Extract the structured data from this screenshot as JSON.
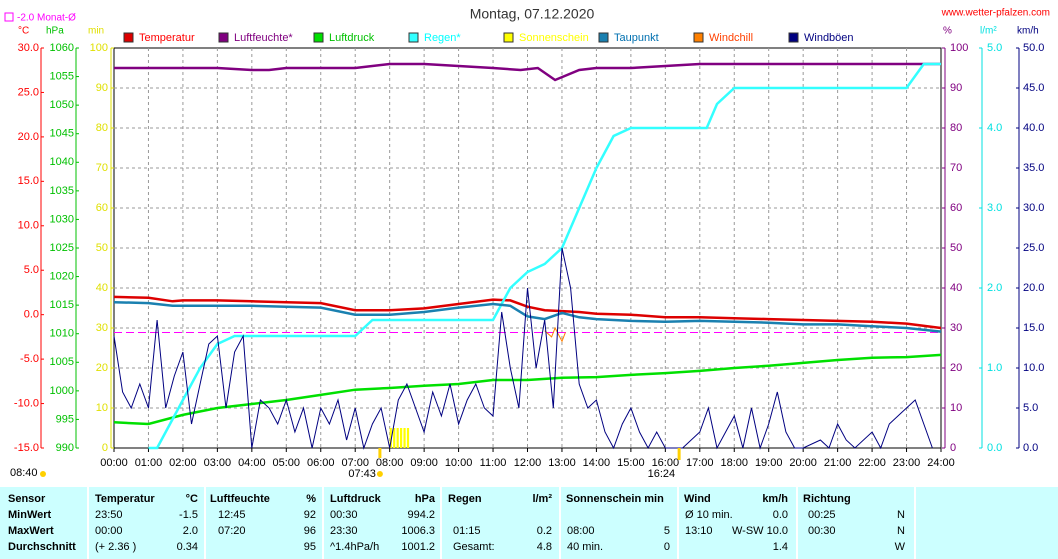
{
  "chart_data": {
    "type": "line",
    "title": "Montag, 07.12.2020",
    "site": "www.wetter-pfalzen.com",
    "monthly_avg": {
      "value": -2.0,
      "label": "-2.0 Monat-Ø",
      "color": "#ff00ff"
    },
    "updated": "08:40",
    "sunrise": "07:43",
    "sunset": "16:24",
    "xlim": [
      0,
      24
    ],
    "xticks": [
      {
        "value": 0,
        "label": "00:00"
      },
      {
        "value": 1,
        "label": "01:00"
      },
      {
        "value": 2,
        "label": "02:00"
      },
      {
        "value": 3,
        "label": "03:00"
      },
      {
        "value": 4,
        "label": "04:00"
      },
      {
        "value": 5,
        "label": "05:00"
      },
      {
        "value": 6,
        "label": "06:00"
      },
      {
        "value": 7,
        "label": "07:00"
      },
      {
        "value": 8,
        "label": "08:00"
      },
      {
        "value": 9,
        "label": "09:00"
      },
      {
        "value": 10,
        "label": "10:00"
      },
      {
        "value": 11,
        "label": "11:00"
      },
      {
        "value": 12,
        "label": "12:00"
      },
      {
        "value": 13,
        "label": "13:00"
      },
      {
        "value": 14,
        "label": "14:00"
      },
      {
        "value": 15,
        "label": "15:00"
      },
      {
        "value": 16,
        "label": "16:00"
      },
      {
        "value": 17,
        "label": "17:00"
      },
      {
        "value": 18,
        "label": "18:00"
      },
      {
        "value": 19,
        "label": "19:00"
      },
      {
        "value": 20,
        "label": "20:00"
      },
      {
        "value": 21,
        "label": "21:00"
      },
      {
        "value": 22,
        "label": "22:00"
      },
      {
        "value": 23,
        "label": "23:00"
      },
      {
        "value": 24,
        "label": "24:00"
      }
    ],
    "grid": true,
    "axes": [
      {
        "unit": "°C",
        "side": "left",
        "color": "#ff0000",
        "lim": [
          -15,
          30
        ],
        "ticks": [
          {
            "value": -15,
            "label": "-15.0"
          },
          {
            "value": -10,
            "label": "-10.0"
          },
          {
            "value": -5,
            "label": "-5.0"
          },
          {
            "value": 0,
            "label": "0.0"
          },
          {
            "value": 5,
            "label": "5.0"
          },
          {
            "value": 10,
            "label": "10.0"
          },
          {
            "value": 15,
            "label": "15.0"
          },
          {
            "value": 20,
            "label": "20.0"
          },
          {
            "value": 25,
            "label": "25.0"
          },
          {
            "value": 30,
            "label": "30.0"
          }
        ]
      },
      {
        "unit": "hPa",
        "side": "left",
        "color": "#00c000",
        "lim": [
          990,
          1060
        ],
        "ticks": [
          990,
          995,
          1000,
          1005,
          1010,
          1015,
          1020,
          1025,
          1030,
          1035,
          1040,
          1045,
          1050,
          1055,
          1060
        ]
      },
      {
        "unit": "min",
        "side": "left",
        "color": "#e0e000",
        "lim": [
          0,
          100
        ],
        "ticks": [
          0,
          10,
          20,
          30,
          40,
          50,
          60,
          70,
          80,
          90,
          100
        ]
      },
      {
        "unit": "%",
        "side": "right",
        "color": "#800080",
        "lim": [
          0,
          100
        ],
        "ticks": [
          0,
          10,
          20,
          30,
          40,
          50,
          60,
          70,
          80,
          90,
          100
        ]
      },
      {
        "unit": "l/m²",
        "side": "right",
        "color": "#00e0e0",
        "lim": [
          0,
          5
        ],
        "ticks": [
          {
            "value": 0,
            "label": "0.0"
          },
          {
            "value": 1,
            "label": "1.0"
          },
          {
            "value": 2,
            "label": "2.0"
          },
          {
            "value": 3,
            "label": "3.0"
          },
          {
            "value": 4,
            "label": "4.0"
          },
          {
            "value": 5,
            "label": "5.0"
          }
        ]
      },
      {
        "unit": "km/h",
        "side": "right",
        "color": "#000080",
        "lim": [
          0,
          50
        ],
        "ticks": [
          {
            "value": 0,
            "label": "0.0"
          },
          {
            "value": 5,
            "label": "5.0"
          },
          {
            "value": 10,
            "label": "10.0"
          },
          {
            "value": 15,
            "label": "15.0"
          },
          {
            "value": 20,
            "label": "20.0"
          },
          {
            "value": 25,
            "label": "25.0"
          },
          {
            "value": 30,
            "label": "30.0"
          },
          {
            "value": 35,
            "label": "35.0"
          },
          {
            "value": 40,
            "label": "40.0"
          },
          {
            "value": 45,
            "label": "45.0"
          },
          {
            "value": 50,
            "label": "50.0"
          }
        ]
      }
    ],
    "series": [
      {
        "name": "Temperatur",
        "color": "#dd0000",
        "text_color": "#ff0000",
        "axis": 0,
        "style": "line",
        "width": 2.5,
        "x": [
          0,
          1,
          1.7,
          2,
          3,
          4,
          5,
          6,
          7,
          8,
          9,
          10,
          11,
          11.5,
          12,
          12.5,
          13,
          13.5,
          14,
          15,
          16,
          17,
          18,
          19,
          20,
          21,
          22,
          23,
          24
        ],
        "values": [
          2.0,
          1.9,
          1.5,
          1.6,
          1.6,
          1.5,
          1.4,
          1.3,
          0.5,
          0.5,
          0.7,
          1.2,
          1.7,
          1.6,
          0.9,
          0.5,
          0.4,
          0.3,
          0.1,
          0,
          -0.3,
          -0.3,
          -0.4,
          -0.5,
          -0.6,
          -0.7,
          -0.8,
          -1.0,
          -1.5
        ]
      },
      {
        "name": "Luftfeuchte*",
        "color": "#800080",
        "text_color": "#800080",
        "axis": 3,
        "style": "line",
        "width": 2.5,
        "x": [
          0,
          2,
          3,
          4,
          4.5,
          5,
          6,
          7,
          8,
          9,
          10,
          11,
          11.8,
          12.3,
          12.8,
          13.5,
          14,
          15,
          16,
          17,
          18,
          20,
          22,
          24
        ],
        "values": [
          95,
          95,
          95,
          94.5,
          94.5,
          95,
          95,
          95,
          96,
          96,
          95.5,
          95,
          94.5,
          95,
          92,
          94.5,
          95,
          95,
          95.5,
          96,
          96,
          96,
          96,
          96
        ]
      },
      {
        "name": "Luftdruck",
        "color": "#00e000",
        "text_color": "#00c000",
        "axis": 1,
        "style": "line",
        "width": 2.5,
        "x": [
          0,
          1,
          2,
          3,
          4,
          5,
          6,
          7,
          8,
          9,
          10,
          11,
          12,
          13,
          14,
          15,
          16,
          17,
          18,
          19,
          20,
          21,
          22,
          23,
          24
        ],
        "values": [
          994.5,
          994.2,
          995.8,
          997,
          997.7,
          998.4,
          999.3,
          1000.2,
          1000.5,
          1000.9,
          1001.2,
          1001.9,
          1001.9,
          1002.3,
          1002.4,
          1002.8,
          1003.1,
          1003.5,
          1004,
          1004.4,
          1004.9,
          1005.4,
          1005.8,
          1005.9,
          1006.3
        ]
      },
      {
        "name": "Regen*",
        "color": "#33ffff",
        "text_color": "#00ffff",
        "axis": 4,
        "style": "line",
        "width": 2.5,
        "x": [
          1,
          1.25,
          1.5,
          2,
          2.5,
          3,
          3.5,
          4,
          7,
          7.5,
          11,
          11.5,
          12,
          12.5,
          13,
          13.5,
          14,
          14.5,
          15,
          17.2,
          17.5,
          18,
          23,
          23.5,
          24
        ],
        "values": [
          0,
          0,
          0.2,
          0.6,
          1.0,
          1.3,
          1.4,
          1.4,
          1.4,
          1.6,
          1.6,
          2.0,
          2.2,
          2.3,
          2.5,
          3.0,
          3.5,
          3.9,
          4.0,
          4.0,
          4.3,
          4.5,
          4.5,
          4.8,
          4.8
        ]
      },
      {
        "name": "Sonnenschein",
        "color": "#ffff00",
        "text_color": "#ffff00",
        "axis": 2,
        "style": "bar",
        "x": [
          8.0,
          8.1,
          8.2,
          8.3,
          8.4,
          8.5
        ],
        "values": [
          5,
          5,
          5,
          5,
          5,
          5
        ]
      },
      {
        "name": "Taupunkt",
        "color": "#1a80b0",
        "text_color": "#0070b0",
        "axis": 0,
        "style": "line",
        "width": 2.5,
        "x": [
          0,
          1,
          1.7,
          2,
          3,
          4,
          5,
          6,
          7,
          8,
          9,
          10,
          11,
          11.5,
          12,
          12.5,
          13,
          13.5,
          14,
          15,
          16,
          17,
          18,
          19,
          20,
          21,
          22,
          23,
          24
        ],
        "values": [
          1.4,
          1.3,
          1.0,
          1.0,
          1.0,
          1.0,
          0.9,
          0.8,
          0.0,
          0.0,
          0.3,
          0.8,
          1.2,
          1.0,
          -0.2,
          -0.5,
          0.2,
          -0.3,
          -0.5,
          -0.7,
          -0.8,
          -0.7,
          -0.8,
          -0.9,
          -1.1,
          -1.1,
          -1.3,
          -1.5,
          -1.9
        ]
      },
      {
        "name": "Windchill",
        "color": "#ff8000",
        "text_color": "#ff4000",
        "axis": 0,
        "style": "line",
        "width": 1,
        "x": [
          12.5,
          12.7,
          12.8,
          13.0,
          13.1
        ],
        "values": [
          -1.8,
          -2.5,
          -1.5,
          -3.0,
          -2.0
        ]
      },
      {
        "name": "Windböen",
        "color": "#000080",
        "text_color": "#000080",
        "axis": 5,
        "style": "line",
        "width": 1,
        "x": [
          0,
          0.25,
          0.5,
          0.75,
          1,
          1.25,
          1.5,
          1.75,
          2,
          2.25,
          2.5,
          2.75,
          3,
          3.25,
          3.5,
          3.75,
          4,
          4.25,
          4.5,
          4.75,
          5,
          5.25,
          5.5,
          5.75,
          6,
          6.25,
          6.5,
          6.75,
          7,
          7.25,
          7.5,
          7.75,
          8,
          8.25,
          8.5,
          8.75,
          9,
          9.25,
          9.5,
          9.75,
          10,
          10.25,
          10.5,
          10.75,
          11,
          11.25,
          11.5,
          11.75,
          12,
          12.25,
          12.5,
          12.75,
          13,
          13.25,
          13.5,
          13.75,
          14,
          14.25,
          14.5,
          14.75,
          15,
          15.25,
          15.5,
          15.75,
          16,
          16.5,
          17,
          17.25,
          17.5,
          18,
          18.25,
          18.5,
          18.75,
          19,
          19.25,
          19.5,
          19.75,
          20,
          20.5,
          20.75,
          21,
          21.25,
          21.5,
          22,
          22.25,
          22.5,
          23,
          23.25,
          23.5,
          23.75
        ],
        "values": [
          14,
          7,
          5,
          8,
          5,
          16,
          5,
          9,
          12,
          3,
          8,
          13,
          14,
          5,
          12,
          14,
          0,
          6,
          5,
          3,
          6,
          2,
          5,
          0,
          5,
          3,
          6,
          1,
          5,
          0,
          3,
          5,
          0,
          6,
          8,
          5,
          2,
          7,
          4,
          8,
          3,
          6,
          8,
          5,
          4,
          17,
          10,
          5,
          20,
          10,
          16,
          5,
          25,
          20,
          8,
          5,
          6,
          2,
          0,
          3,
          5,
          2,
          0,
          2,
          0,
          0,
          2,
          5,
          0,
          4,
          0,
          5,
          0,
          3,
          7,
          2,
          0,
          0,
          1,
          0,
          3,
          1,
          0,
          2,
          0,
          3,
          5,
          6,
          3,
          0
        ]
      }
    ]
  },
  "table": {
    "header": [
      "Sensor",
      "Temperatur",
      "°C",
      "Luftfeuchte",
      "%",
      "Luftdruck",
      "hPa",
      "Regen",
      "l/m²",
      "Sonnenschein min",
      "Wind",
      "km/h",
      "Richtung"
    ],
    "rows": [
      [
        "MinWert",
        "23:50",
        "-1.5",
        "12:45",
        "92",
        "00:30",
        "994.2",
        null,
        null,
        null,
        null,
        "Ø 10 min.",
        "0.0",
        "00:25",
        "N"
      ],
      [
        "MaxWert",
        "00:00",
        "2.0",
        "07:20",
        "96",
        "23:30",
        "1006.3",
        "01:15",
        "0.2",
        "08:00",
        "5",
        "13:10",
        "W-SW 10.0",
        "00:30",
        "N"
      ],
      [
        "Durchschnitt",
        "(+ 2.36 )",
        "0.34",
        null,
        "95",
        "^1.4hPa/h",
        "1001.2",
        "Gesamt:",
        "4.8",
        "40 min.",
        "0",
        null,
        "1.4",
        null,
        "W"
      ]
    ]
  }
}
